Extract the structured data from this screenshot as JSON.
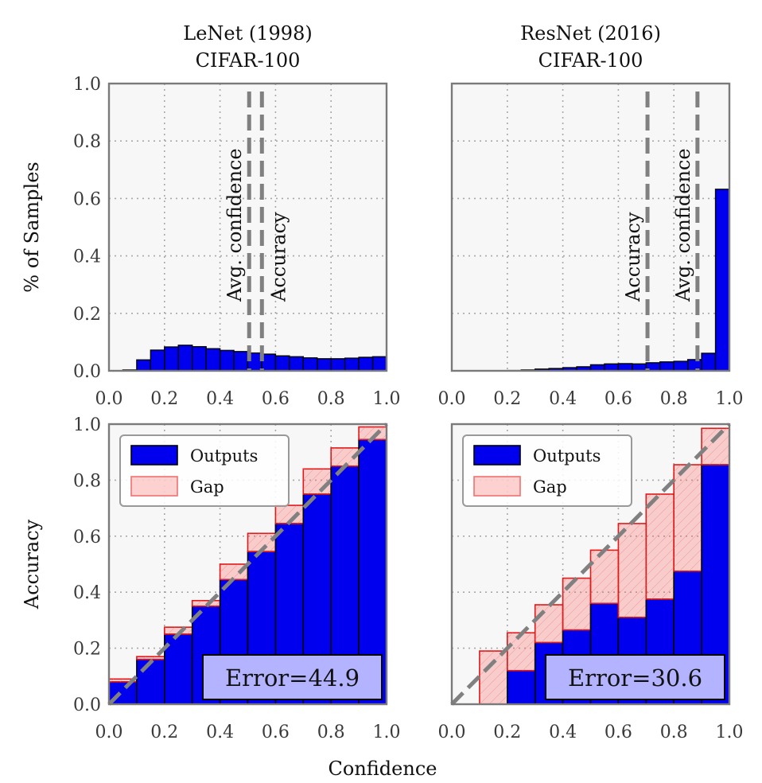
{
  "figure": {
    "shared_xlabel": "Confidence"
  },
  "chart_data": [
    {
      "id": "lenet-hist",
      "type": "bar",
      "title_line1": "LeNet (1998)",
      "title_line2": "CIFAR-100",
      "ylabel": "% of Samples",
      "xlabel": "",
      "xlim": [
        0,
        1
      ],
      "ylim": [
        0,
        1
      ],
      "xticks": [
        "0.0",
        "0.2",
        "0.4",
        "0.6",
        "0.8",
        "1.0"
      ],
      "yticks": [
        "0.0",
        "0.2",
        "0.4",
        "0.6",
        "0.8",
        "1.0"
      ],
      "grid": true,
      "bin_width": 0.05,
      "bin_starts": [
        0.0,
        0.05,
        0.1,
        0.15,
        0.2,
        0.25,
        0.3,
        0.35,
        0.4,
        0.45,
        0.5,
        0.55,
        0.6,
        0.65,
        0.7,
        0.75,
        0.8,
        0.85,
        0.9,
        0.95
      ],
      "values": [
        0.0,
        0.003,
        0.038,
        0.072,
        0.083,
        0.089,
        0.084,
        0.077,
        0.071,
        0.067,
        0.062,
        0.058,
        0.052,
        0.049,
        0.045,
        0.042,
        0.042,
        0.044,
        0.047,
        0.049
      ],
      "color": "#0000ee",
      "vlines": [
        {
          "label": "Avg. confidence",
          "x": 0.505,
          "text_side": "left"
        },
        {
          "label": "Accuracy",
          "x": 0.551,
          "text_side": "right"
        }
      ]
    },
    {
      "id": "resnet-hist",
      "type": "bar",
      "title_line1": "ResNet (2016)",
      "title_line2": "CIFAR-100",
      "ylabel": "",
      "xlabel": "",
      "xlim": [
        0,
        1
      ],
      "ylim": [
        0,
        1
      ],
      "xticks": [
        "0.0",
        "0.2",
        "0.4",
        "0.6",
        "0.8",
        "1.0"
      ],
      "yticks": [],
      "grid": true,
      "bin_width": 0.05,
      "bin_starts": [
        0.0,
        0.05,
        0.1,
        0.15,
        0.2,
        0.25,
        0.3,
        0.35,
        0.4,
        0.45,
        0.5,
        0.55,
        0.6,
        0.65,
        0.7,
        0.75,
        0.8,
        0.85,
        0.9,
        0.95
      ],
      "values": [
        0.0,
        0.0,
        0.0,
        0.0,
        0.001,
        0.003,
        0.006,
        0.008,
        0.011,
        0.014,
        0.021,
        0.024,
        0.025,
        0.024,
        0.028,
        0.031,
        0.033,
        0.039,
        0.061,
        0.632
      ],
      "color": "#0000ee",
      "vlines": [
        {
          "label": "Accuracy",
          "x": 0.705,
          "text_side": "left"
        },
        {
          "label": "Avg. confidence",
          "x": 0.885,
          "text_side": "left"
        }
      ]
    },
    {
      "id": "lenet-reliability",
      "type": "bar",
      "title_line1": "",
      "title_line2": "",
      "ylabel": "Accuracy",
      "xlabel": "",
      "xlim": [
        0,
        1
      ],
      "ylim": [
        0,
        1
      ],
      "xticks": [
        "0.0",
        "0.2",
        "0.4",
        "0.6",
        "0.8",
        "1.0"
      ],
      "yticks": [
        "0.0",
        "0.2",
        "0.4",
        "0.6",
        "0.8",
        "1.0"
      ],
      "grid": true,
      "bin_width": 0.1,
      "bin_starts": [
        0.0,
        0.1,
        0.2,
        0.3,
        0.4,
        0.5,
        0.6,
        0.7,
        0.8,
        0.9
      ],
      "outputs": [
        0.08,
        0.16,
        0.25,
        0.35,
        0.445,
        0.545,
        0.645,
        0.75,
        0.85,
        0.945
      ],
      "expected": [
        0.09,
        0.17,
        0.275,
        0.37,
        0.5,
        0.61,
        0.71,
        0.84,
        0.915,
        0.99
      ],
      "legend": {
        "outputs_label": "Outputs",
        "gap_label": "Gap",
        "position": "upper-left"
      },
      "error_label": "Error=44.9"
    },
    {
      "id": "resnet-reliability",
      "type": "bar",
      "title_line1": "",
      "title_line2": "",
      "ylabel": "",
      "xlabel": "",
      "xlim": [
        0,
        1
      ],
      "ylim": [
        0,
        1
      ],
      "xticks": [
        "0.0",
        "0.2",
        "0.4",
        "0.6",
        "0.8",
        "1.0"
      ],
      "yticks": [],
      "grid": true,
      "bin_width": 0.1,
      "bin_starts": [
        0.0,
        0.1,
        0.2,
        0.3,
        0.4,
        0.5,
        0.6,
        0.7,
        0.8,
        0.9
      ],
      "outputs": [
        0.0,
        0.0,
        0.12,
        0.22,
        0.265,
        0.36,
        0.31,
        0.375,
        0.475,
        0.855
      ],
      "expected": [
        0.0,
        0.19,
        0.255,
        0.355,
        0.45,
        0.55,
        0.645,
        0.75,
        0.855,
        0.985
      ],
      "legend": {
        "outputs_label": "Outputs",
        "gap_label": "Gap",
        "position": "upper-left"
      },
      "error_label": "Error=30.6"
    }
  ]
}
